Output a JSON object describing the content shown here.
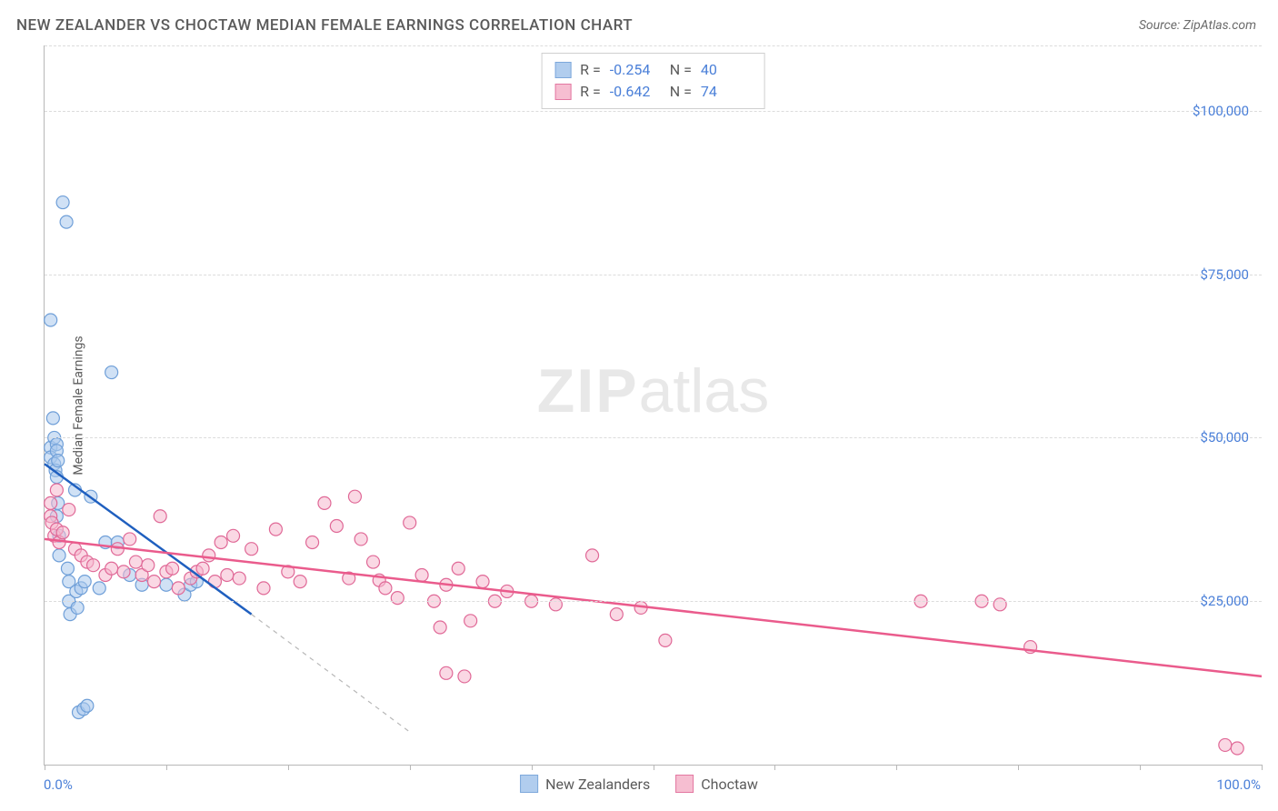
{
  "title": "NEW ZEALANDER VS CHOCTAW MEDIAN FEMALE EARNINGS CORRELATION CHART",
  "source": "Source: ZipAtlas.com",
  "watermark_zip": "ZIP",
  "watermark_atlas": "atlas",
  "y_axis_label": "Median Female Earnings",
  "chart": {
    "type": "scatter",
    "xlim": [
      0,
      100
    ],
    "ylim": [
      0,
      110000
    ],
    "x_ticks": [
      0,
      10,
      20,
      30,
      40,
      50,
      60,
      70,
      80,
      90,
      100
    ],
    "x_tick_labels": {
      "0": "0.0%",
      "100": "100.0%"
    },
    "y_gridlines": [
      25000,
      50000,
      75000,
      100000,
      110000
    ],
    "y_tick_labels": {
      "25000": "$25,000",
      "50000": "$50,000",
      "75000": "$75,000",
      "100000": "$100,000"
    },
    "grid_color": "#dcdcdc",
    "axis_color": "#b8b8b8",
    "tick_label_color": "#4a7fd8",
    "marker_radius": 7,
    "marker_stroke_width": 1.2,
    "series": [
      {
        "name": "New Zealanders",
        "fill": "#a9c8ed",
        "fill_opacity": 0.55,
        "stroke": "#6f9fd8",
        "R": "-0.254",
        "N": "40",
        "regression_color": "#1f5fbf",
        "regression_dash_color": "#b8b8b8",
        "regression": {
          "x1": 0,
          "y1": 46000,
          "x2": 17,
          "y2": 23000,
          "x2_dash": 30,
          "y2_dash": 5000
        },
        "points": [
          [
            0.5,
            68000
          ],
          [
            0.5,
            48500
          ],
          [
            0.5,
            47000
          ],
          [
            0.7,
            53000
          ],
          [
            0.8,
            50000
          ],
          [
            0.8,
            46000
          ],
          [
            0.9,
            45000
          ],
          [
            1.0,
            49000
          ],
          [
            1.0,
            48000
          ],
          [
            1.0,
            44000
          ],
          [
            1.0,
            38000
          ],
          [
            1.1,
            46500
          ],
          [
            1.1,
            40000
          ],
          [
            1.2,
            35000
          ],
          [
            1.2,
            32000
          ],
          [
            1.5,
            86000
          ],
          [
            1.8,
            83000
          ],
          [
            1.9,
            30000
          ],
          [
            2.0,
            28000
          ],
          [
            2.0,
            25000
          ],
          [
            2.1,
            23000
          ],
          [
            2.5,
            42000
          ],
          [
            2.6,
            26500
          ],
          [
            2.7,
            24000
          ],
          [
            2.8,
            8000
          ],
          [
            3.0,
            27000
          ],
          [
            3.2,
            8500
          ],
          [
            3.3,
            28000
          ],
          [
            3.5,
            9000
          ],
          [
            3.8,
            41000
          ],
          [
            4.5,
            27000
          ],
          [
            5.0,
            34000
          ],
          [
            5.5,
            60000
          ],
          [
            6.0,
            34000
          ],
          [
            7.0,
            29000
          ],
          [
            8.0,
            27500
          ],
          [
            10.0,
            27500
          ],
          [
            11.5,
            26000
          ],
          [
            12.0,
            27500
          ],
          [
            12.5,
            28000
          ]
        ]
      },
      {
        "name": "Choctaw",
        "fill": "#f6b8cd",
        "fill_opacity": 0.55,
        "stroke": "#e06997",
        "R": "-0.642",
        "N": "74",
        "regression_color": "#ea5b8c",
        "regression": {
          "x1": 0,
          "y1": 34500,
          "x2": 100,
          "y2": 13500
        },
        "points": [
          [
            0.5,
            40000
          ],
          [
            0.5,
            38000
          ],
          [
            0.6,
            37000
          ],
          [
            0.8,
            35000
          ],
          [
            1.0,
            42000
          ],
          [
            1.0,
            36000
          ],
          [
            1.2,
            34000
          ],
          [
            1.5,
            35500
          ],
          [
            2.0,
            39000
          ],
          [
            2.5,
            33000
          ],
          [
            3.0,
            32000
          ],
          [
            3.5,
            31000
          ],
          [
            4.0,
            30500
          ],
          [
            5.0,
            29000
          ],
          [
            5.5,
            30000
          ],
          [
            6.0,
            33000
          ],
          [
            6.5,
            29500
          ],
          [
            7.0,
            34500
          ],
          [
            7.5,
            31000
          ],
          [
            8.0,
            29000
          ],
          [
            8.5,
            30500
          ],
          [
            9.0,
            28000
          ],
          [
            9.5,
            38000
          ],
          [
            10.0,
            29500
          ],
          [
            10.5,
            30000
          ],
          [
            11.0,
            27000
          ],
          [
            12.0,
            28500
          ],
          [
            12.5,
            29500
          ],
          [
            13.0,
            30000
          ],
          [
            13.5,
            32000
          ],
          [
            14.0,
            28000
          ],
          [
            14.5,
            34000
          ],
          [
            15.0,
            29000
          ],
          [
            15.5,
            35000
          ],
          [
            16.0,
            28500
          ],
          [
            17.0,
            33000
          ],
          [
            18.0,
            27000
          ],
          [
            19.0,
            36000
          ],
          [
            20.0,
            29500
          ],
          [
            21.0,
            28000
          ],
          [
            22.0,
            34000
          ],
          [
            23.0,
            40000
          ],
          [
            24.0,
            36500
          ],
          [
            25.0,
            28500
          ],
          [
            25.5,
            41000
          ],
          [
            26.0,
            34500
          ],
          [
            27.0,
            31000
          ],
          [
            27.5,
            28200
          ],
          [
            28.0,
            27000
          ],
          [
            29.0,
            25500
          ],
          [
            30.0,
            37000
          ],
          [
            31.0,
            29000
          ],
          [
            32.0,
            25000
          ],
          [
            32.5,
            21000
          ],
          [
            33.0,
            27500
          ],
          [
            34.0,
            30000
          ],
          [
            35.0,
            22000
          ],
          [
            36.0,
            28000
          ],
          [
            37.0,
            25000
          ],
          [
            38.0,
            26500
          ],
          [
            33.0,
            14000
          ],
          [
            34.5,
            13500
          ],
          [
            40.0,
            25000
          ],
          [
            42.0,
            24500
          ],
          [
            45.0,
            32000
          ],
          [
            47.0,
            23000
          ],
          [
            49.0,
            24000
          ],
          [
            51.0,
            19000
          ],
          [
            72.0,
            25000
          ],
          [
            77.0,
            25000
          ],
          [
            78.5,
            24500
          ],
          [
            81.0,
            18000
          ],
          [
            98.0,
            2500
          ],
          [
            97.0,
            3000
          ]
        ]
      }
    ]
  },
  "legend": {
    "series1_label": "New Zealanders",
    "series2_label": "Choctaw"
  },
  "stats_labels": {
    "R": "R =",
    "N": "N ="
  }
}
